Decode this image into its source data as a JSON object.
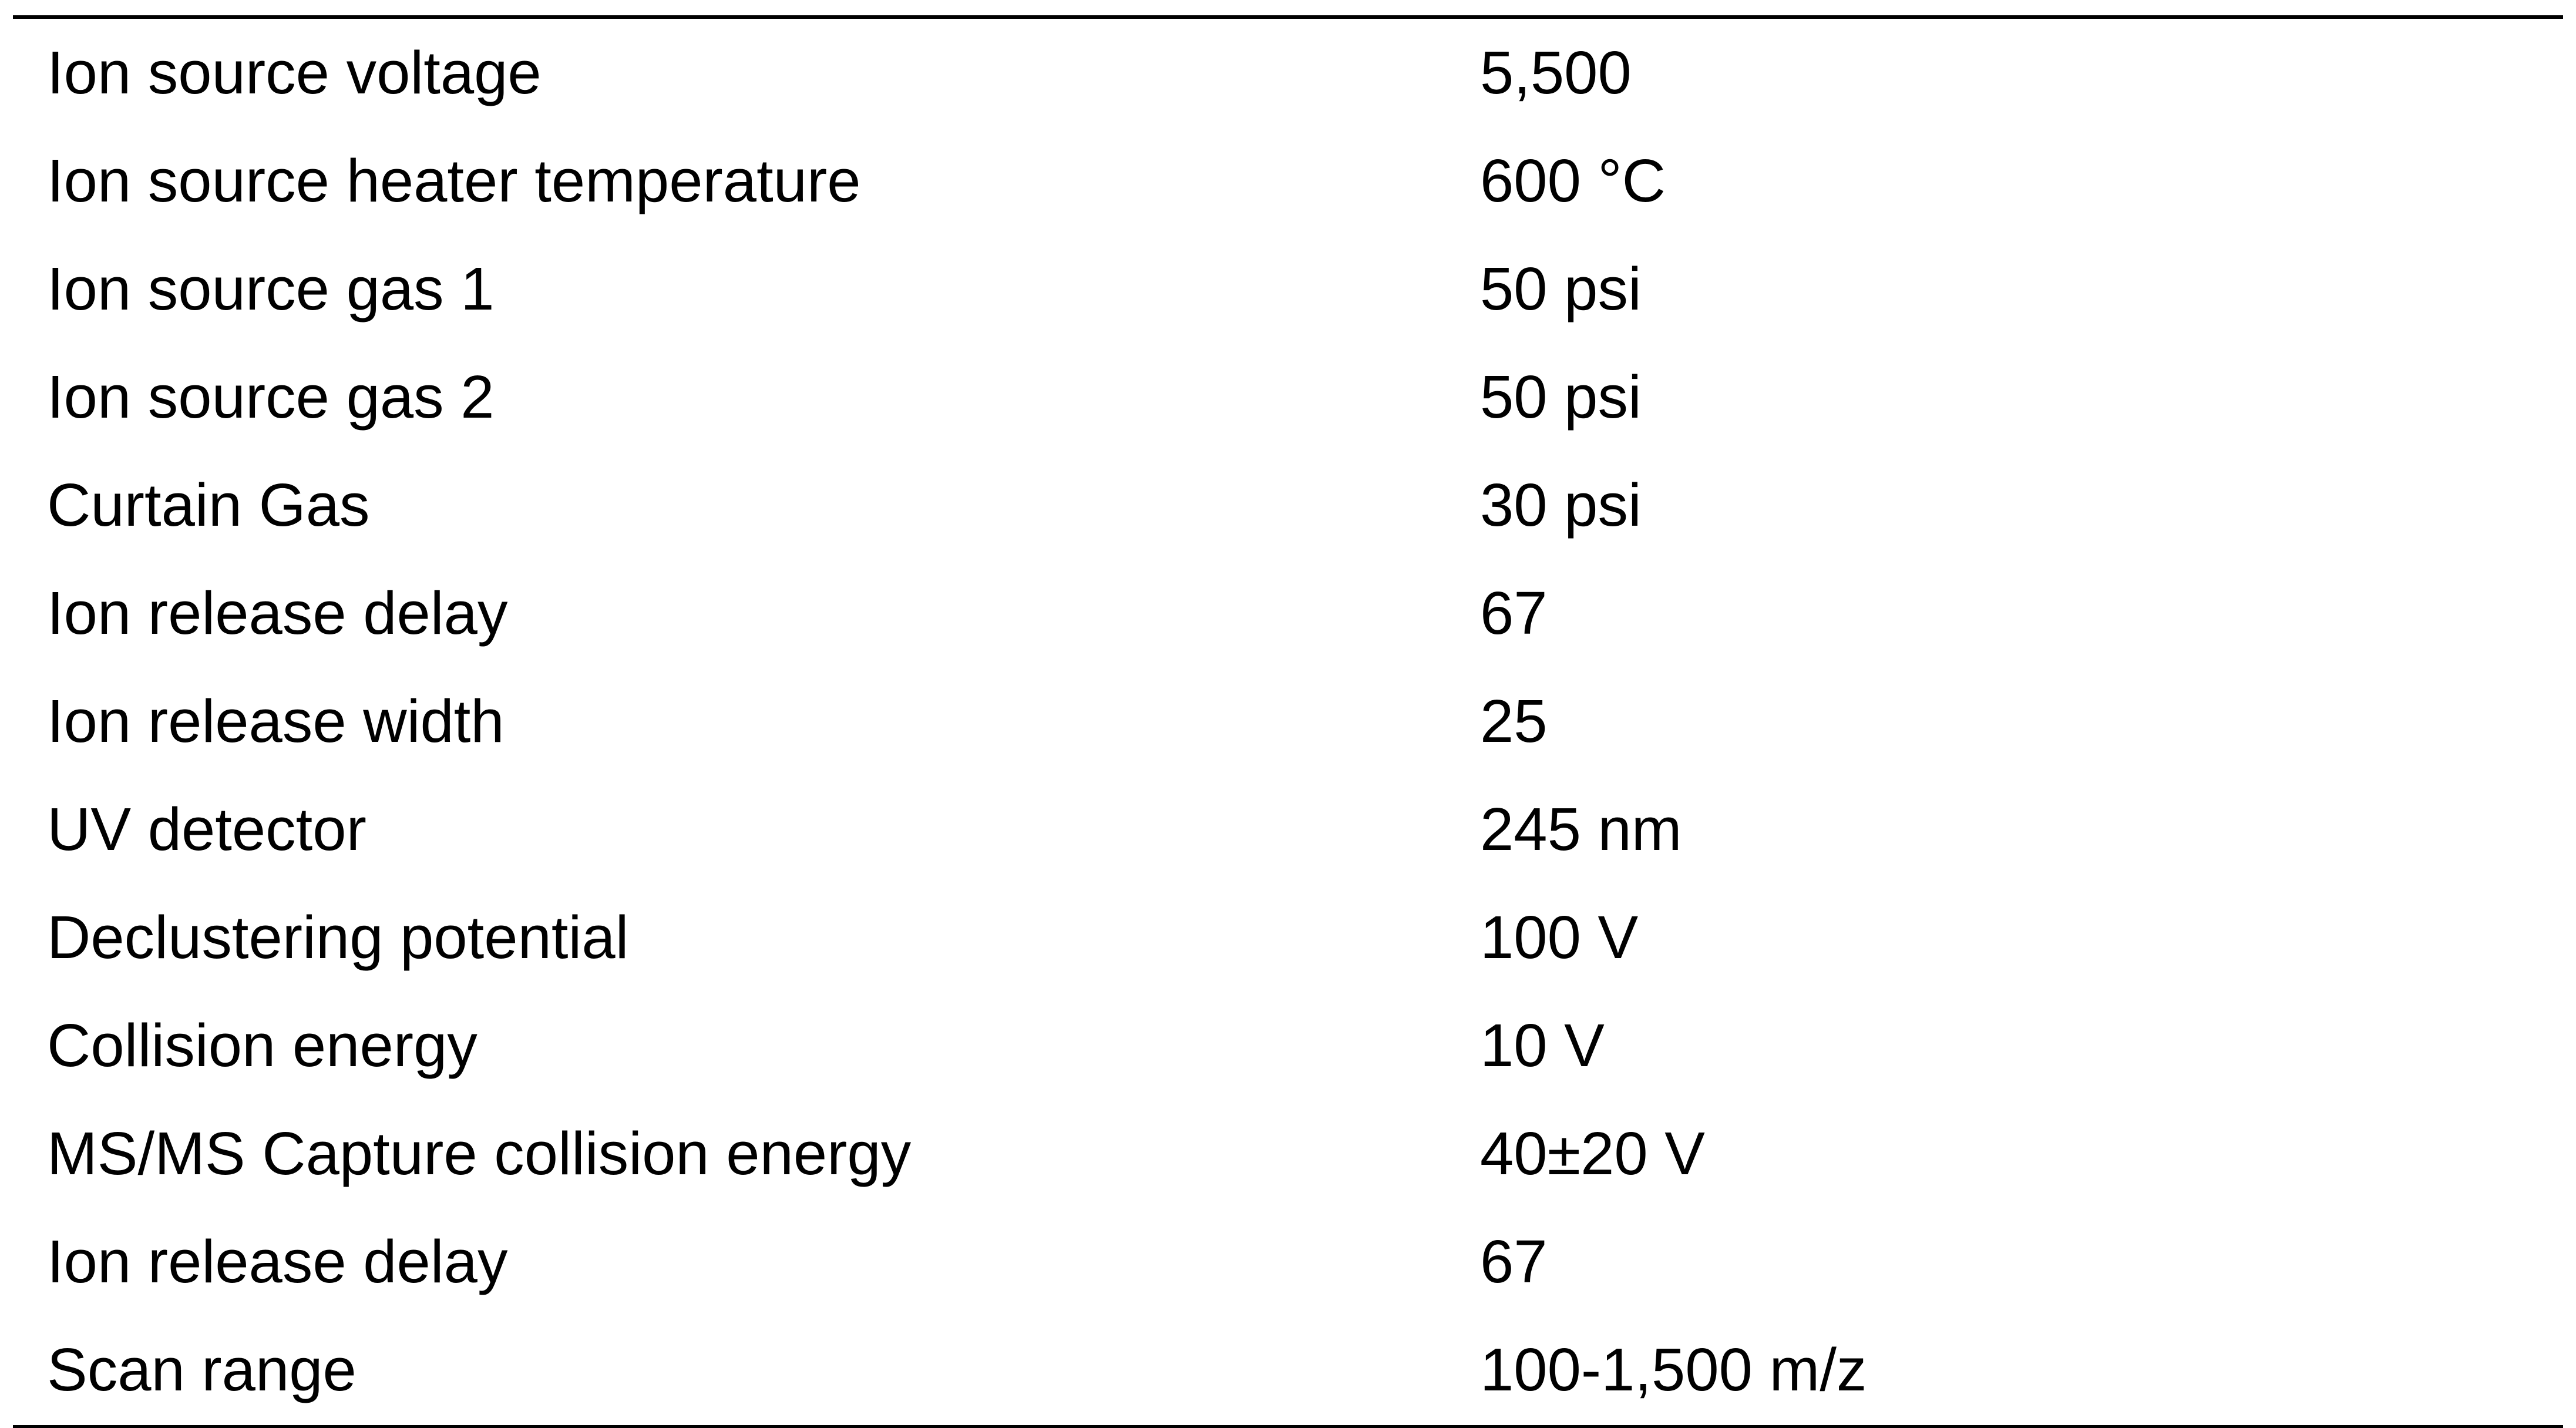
{
  "table": {
    "rows": [
      {
        "label": "Ion source voltage",
        "value": "5,500"
      },
      {
        "label": "Ion source heater temperature",
        "value": "600 °C"
      },
      {
        "label": "Ion source gas 1",
        "value": "50 psi"
      },
      {
        "label": "Ion source gas 2",
        "value": "50 psi"
      },
      {
        "label": "Curtain Gas",
        "value": "30 psi"
      },
      {
        "label": "Ion release delay",
        "value": "67"
      },
      {
        "label": "Ion release width",
        "value": "25"
      },
      {
        "label": "UV detector",
        "value": "245 nm"
      },
      {
        "label": "Declustering potential",
        "value": "100 V"
      },
      {
        "label": "Collision energy",
        "value": "10 V"
      },
      {
        "label": "MS/MS Capture collision energy",
        "value": "40±20 V"
      },
      {
        "label": "Ion release delay",
        "value": "67"
      },
      {
        "label": "Scan range",
        "value": "100-1,500 m/z"
      }
    ]
  }
}
